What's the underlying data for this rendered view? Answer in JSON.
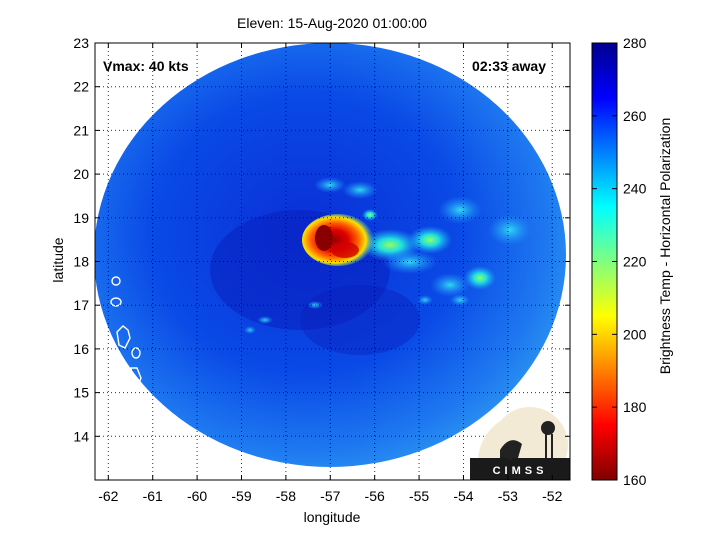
{
  "title": "Eleven: 15-Aug-2020 01:00:00",
  "annotations": {
    "vmax": "Vmax: 40 kts",
    "time_away": "02:33 away"
  },
  "logo_text": "CIMSS",
  "xaxis": {
    "label": "longitude",
    "range": [
      -62.3,
      -51.6
    ],
    "ticks": [
      -62,
      -61,
      -60,
      -59,
      -58,
      -57,
      -56,
      -55,
      -54,
      -53,
      -52
    ]
  },
  "yaxis": {
    "label": "latitude",
    "range": [
      13.0,
      23.0
    ],
    "ticks": [
      14,
      15,
      16,
      17,
      18,
      19,
      20,
      21,
      22,
      23
    ]
  },
  "colorbar": {
    "label": "Brightness Temp - Horizontal Polarization",
    "range": [
      160,
      280
    ],
    "ticks": [
      160,
      180,
      200,
      220,
      240,
      260,
      280
    ],
    "stops": [
      "#7f0000",
      "#ff0000",
      "#ff8000",
      "#ffff00",
      "#80ff80",
      "#00ffff",
      "#0080ff",
      "#0000ff",
      "#00008f"
    ]
  },
  "swath": {
    "center_lon": -56.95,
    "center_lat": 18.0,
    "type": "circular"
  },
  "features": [
    {
      "name": "core",
      "lon": -57.05,
      "lat": 18.35,
      "temp": 168
    },
    {
      "name": "band-east",
      "lon": -55.9,
      "lat": 18.5,
      "temp": 228
    },
    {
      "name": "band-far-east",
      "lon": -54.4,
      "lat": 18.4,
      "temp": 230
    },
    {
      "name": "outer-cluster",
      "lon": -53.5,
      "lat": 17.5,
      "temp": 232
    }
  ],
  "grid": true
}
